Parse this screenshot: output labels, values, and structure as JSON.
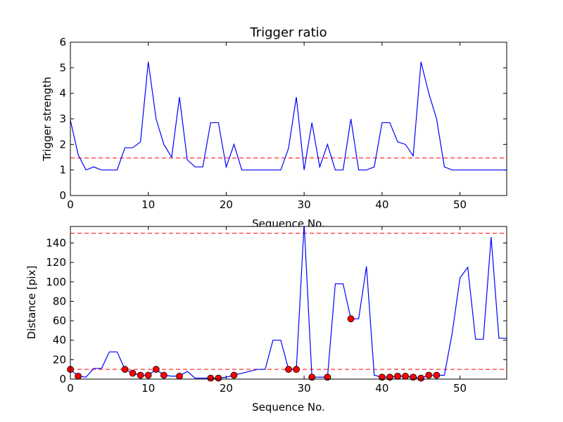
{
  "chart_data": [
    {
      "type": "line",
      "title": "Trigger ratio",
      "xlabel": "Sequence No.",
      "ylabel": "Trigger strength",
      "xlim": [
        0,
        56
      ],
      "ylim": [
        0,
        6
      ],
      "xticks": [
        0,
        10,
        20,
        30,
        40,
        50
      ],
      "yticks": [
        0,
        1,
        2,
        3,
        4,
        5,
        6
      ],
      "grid": false,
      "colors": {
        "line": "#0000ff",
        "threshold": "#ff0000"
      },
      "threshold": 1.47,
      "series": [
        {
          "x": [
            0,
            1,
            2,
            3,
            4,
            5,
            6,
            7,
            8,
            9,
            10,
            11,
            12,
            13,
            14,
            15,
            16,
            17,
            18,
            19,
            20,
            21,
            22,
            23,
            24,
            25,
            26,
            27,
            28,
            29,
            30,
            31,
            32,
            33,
            34,
            35,
            36,
            37,
            38,
            39,
            40,
            41,
            42,
            43,
            44,
            45,
            46,
            47,
            48,
            49,
            50,
            51,
            52,
            53,
            54,
            55,
            56
          ],
          "y": [
            2.95,
            1.6,
            1.0,
            1.12,
            1.0,
            1.0,
            1.0,
            1.87,
            1.87,
            2.1,
            5.23,
            3.0,
            2.0,
            1.5,
            3.85,
            1.4,
            1.12,
            1.12,
            2.85,
            2.85,
            1.12,
            2.0,
            1.0,
            1.0,
            1.0,
            1.0,
            1.0,
            1.0,
            1.85,
            3.85,
            1.0,
            2.85,
            1.12,
            2.0,
            1.0,
            1.0,
            3.0,
            1.0,
            1.0,
            1.12,
            2.85,
            2.85,
            2.1,
            2.0,
            1.55,
            5.23,
            4.0,
            3.0,
            1.12,
            1.0,
            1.0,
            1.0,
            1.0,
            1.0,
            1.0,
            1.0,
            1.0
          ]
        }
      ]
    },
    {
      "type": "line",
      "title": "",
      "xlabel": "Sequence No.",
      "ylabel": "Distance [pix]",
      "xlim": [
        0,
        56
      ],
      "ylim": [
        0,
        157
      ],
      "xticks": [
        0,
        10,
        20,
        30,
        40,
        50
      ],
      "yticks": [
        0,
        20,
        40,
        60,
        80,
        100,
        120,
        140
      ],
      "grid": false,
      "colors": {
        "line": "#0000ff",
        "threshold": "#ff0000",
        "marker": "#ff0000"
      },
      "thresholds": [
        10,
        150
      ],
      "series": [
        {
          "x": [
            0,
            1,
            2,
            3,
            4,
            5,
            6,
            7,
            8,
            9,
            10,
            11,
            12,
            13,
            14,
            15,
            16,
            17,
            18,
            19,
            20,
            21,
            22,
            23,
            24,
            25,
            26,
            27,
            28,
            29,
            30,
            31,
            32,
            33,
            34,
            35,
            36,
            37,
            38,
            39,
            40,
            41,
            42,
            43,
            44,
            45,
            46,
            47,
            48,
            49,
            50,
            51,
            52,
            53,
            54,
            55,
            56
          ],
          "y": [
            10,
            3,
            2,
            11,
            11,
            28,
            28,
            10,
            6,
            4,
            4,
            10,
            4,
            3,
            3,
            8,
            1,
            1,
            1,
            1,
            2,
            4,
            6,
            8,
            10,
            10,
            40,
            40,
            10,
            10,
            160,
            2,
            2,
            2,
            98,
            98,
            62,
            62,
            116,
            4,
            2,
            2,
            3,
            3,
            2,
            1,
            4,
            4,
            4,
            47,
            104,
            115,
            41,
            41,
            146,
            42,
            42
          ]
        }
      ],
      "markers": {
        "x": [
          0,
          1,
          7,
          8,
          9,
          10,
          11,
          12,
          14,
          18,
          19,
          21,
          28,
          29,
          31,
          33,
          36,
          40,
          41,
          42,
          43,
          44,
          45,
          46,
          47
        ],
        "y": [
          10,
          3,
          10,
          6,
          4,
          4,
          10,
          4,
          3,
          1,
          1,
          4,
          10,
          10,
          2,
          2,
          62,
          2,
          2,
          3,
          3,
          2,
          1,
          4,
          4
        ]
      }
    }
  ]
}
